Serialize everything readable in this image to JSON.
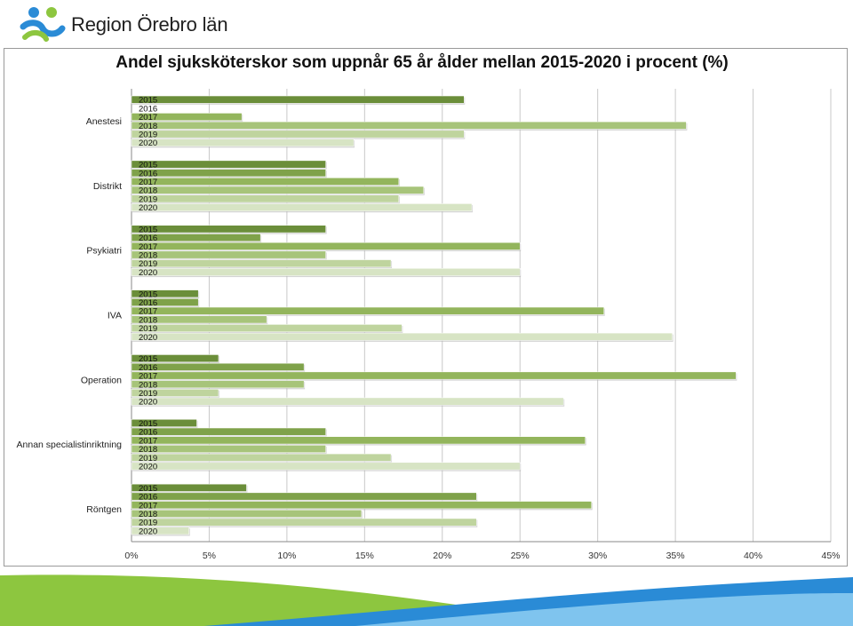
{
  "header": {
    "logo_text": "Region Örebro län",
    "logo_icon": "region-orebro-logo"
  },
  "colors": {
    "year_2015": "#6b8e3a",
    "year_2016": "#7fa24a",
    "year_2017": "#93b55c",
    "year_2018": "#a7c47a",
    "year_2019": "#bfd49e",
    "year_2020": "#d7e4c4",
    "gridline": "#c8c8c8",
    "footer_green": "#8dc63f",
    "footer_blue": "#2a8bd6"
  },
  "chart_data": {
    "type": "bar",
    "orientation": "horizontal",
    "title": "Andel sjuksköterskor som uppnår 65 år ålder mellan 2015-2020 i procent (%)",
    "xlabel": "",
    "ylabel": "",
    "xlim": [
      0,
      45
    ],
    "xticks": [
      "0%",
      "5%",
      "10%",
      "15%",
      "20%",
      "25%",
      "30%",
      "35%",
      "40%",
      "45%"
    ],
    "grid": true,
    "bar_labels_inside": true,
    "categories": [
      "Anestesi",
      "Distrikt",
      "Psykiatri",
      "IVA",
      "Operation",
      "Annan specialistinriktning",
      "Röntgen"
    ],
    "series": [
      {
        "name": "2015",
        "values": [
          21.4,
          12.5,
          12.5,
          4.3,
          5.6,
          4.2,
          7.4
        ]
      },
      {
        "name": "2016",
        "values": [
          0,
          12.5,
          8.3,
          4.3,
          11.1,
          12.5,
          22.2
        ]
      },
      {
        "name": "2017",
        "values": [
          7.1,
          17.2,
          25.0,
          30.4,
          38.9,
          29.2,
          29.6
        ]
      },
      {
        "name": "2018",
        "values": [
          35.7,
          18.8,
          12.5,
          8.7,
          11.1,
          12.5,
          14.8
        ]
      },
      {
        "name": "2019",
        "values": [
          21.4,
          17.2,
          16.7,
          17.4,
          5.6,
          16.7,
          22.2
        ]
      },
      {
        "name": "2020",
        "values": [
          14.3,
          21.9,
          25.0,
          34.8,
          27.8,
          25.0,
          3.7
        ]
      }
    ]
  }
}
